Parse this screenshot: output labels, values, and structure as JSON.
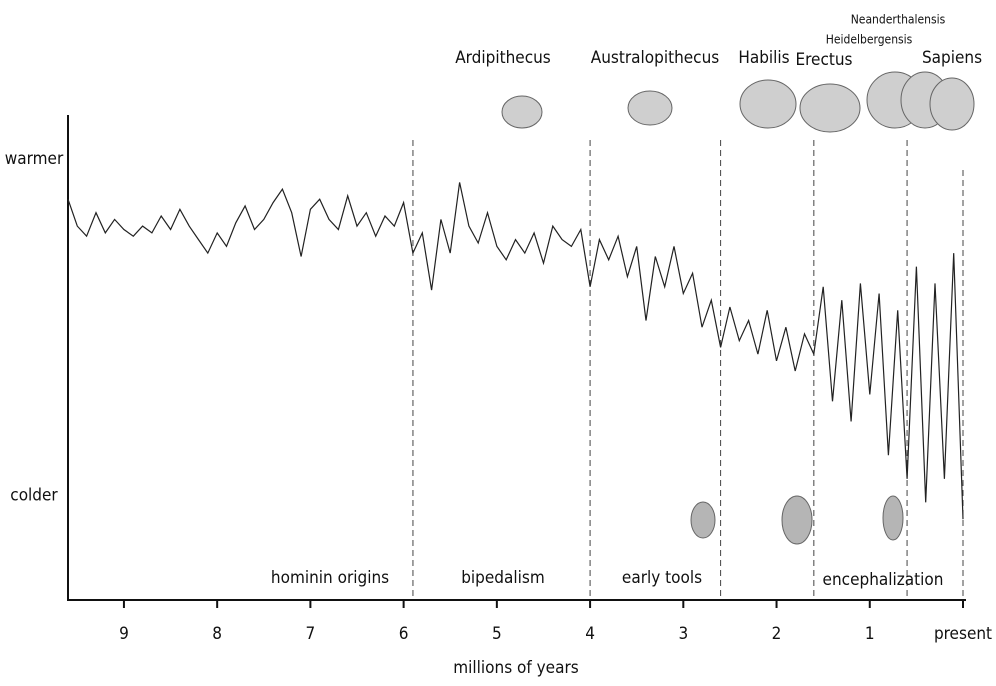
{
  "chart_data": {
    "type": "line",
    "x": [
      9.6,
      9.5,
      9.4,
      9.3,
      9.2,
      9.1,
      9.0,
      8.9,
      8.8,
      8.7,
      8.6,
      8.5,
      8.4,
      8.3,
      8.2,
      8.1,
      8.0,
      7.9,
      7.8,
      7.7,
      7.6,
      7.5,
      7.4,
      7.3,
      7.2,
      7.1,
      7.0,
      6.9,
      6.8,
      6.7,
      6.6,
      6.5,
      6.4,
      6.3,
      6.2,
      6.1,
      6.0,
      5.9,
      5.8,
      5.7,
      5.6,
      5.5,
      5.4,
      5.3,
      5.2,
      5.1,
      5.0,
      4.9,
      4.8,
      4.7,
      4.6,
      4.5,
      4.4,
      4.3,
      4.2,
      4.1,
      4.0,
      3.9,
      3.8,
      3.7,
      3.6,
      3.5,
      3.4,
      3.3,
      3.2,
      3.1,
      3.0,
      2.9,
      2.8,
      2.7,
      2.6,
      2.5,
      2.4,
      2.3,
      2.2,
      2.1,
      2.0,
      1.9,
      1.8,
      1.7,
      1.6,
      1.5,
      1.4,
      1.3,
      1.2,
      1.1,
      1.0,
      0.9,
      0.8,
      0.7,
      0.6,
      0.5,
      0.4,
      0.3,
      0.2,
      0.1,
      0.0
    ],
    "values": [
      0.88,
      0.8,
      0.77,
      0.84,
      0.78,
      0.82,
      0.79,
      0.77,
      0.8,
      0.78,
      0.83,
      0.79,
      0.85,
      0.8,
      0.76,
      0.72,
      0.78,
      0.74,
      0.81,
      0.86,
      0.79,
      0.82,
      0.87,
      0.91,
      0.84,
      0.71,
      0.85,
      0.88,
      0.82,
      0.79,
      0.89,
      0.8,
      0.84,
      0.77,
      0.83,
      0.8,
      0.87,
      0.72,
      0.78,
      0.61,
      0.82,
      0.72,
      0.93,
      0.8,
      0.75,
      0.84,
      0.74,
      0.7,
      0.76,
      0.72,
      0.78,
      0.69,
      0.8,
      0.76,
      0.74,
      0.79,
      0.62,
      0.76,
      0.7,
      0.77,
      0.65,
      0.74,
      0.52,
      0.71,
      0.62,
      0.74,
      0.6,
      0.66,
      0.5,
      0.58,
      0.44,
      0.56,
      0.46,
      0.52,
      0.42,
      0.55,
      0.4,
      0.5,
      0.37,
      0.48,
      0.42,
      0.62,
      0.28,
      0.58,
      0.22,
      0.63,
      0.3,
      0.6,
      0.12,
      0.55,
      0.05,
      0.68,
      -0.02,
      0.63,
      0.05,
      0.72,
      -0.07
    ],
    "color": "#222222",
    "xlim": [
      9.6,
      0
    ],
    "xticks": [
      9,
      8,
      7,
      6,
      5,
      4,
      3,
      2,
      1,
      {
        "value": 0,
        "label": "present"
      }
    ],
    "xlabel": "millions of years",
    "ylim": [
      -0.31,
      1.13
    ],
    "yticks": [
      {
        "value": 1,
        "label": "warmer"
      },
      {
        "value": 0,
        "label": "colder"
      }
    ],
    "boundaries": [
      5.9,
      4.0,
      2.6,
      1.6,
      0.6,
      0.0
    ],
    "periods": [
      "hominin origins",
      "bipedalism",
      "early tools",
      "encephalization"
    ],
    "annotations": [
      "Ardipithecus",
      "Australopithecus",
      "Habilis",
      "Erectus",
      "Heidelbergensis",
      "Neanderthalensis",
      "Sapiens"
    ]
  }
}
